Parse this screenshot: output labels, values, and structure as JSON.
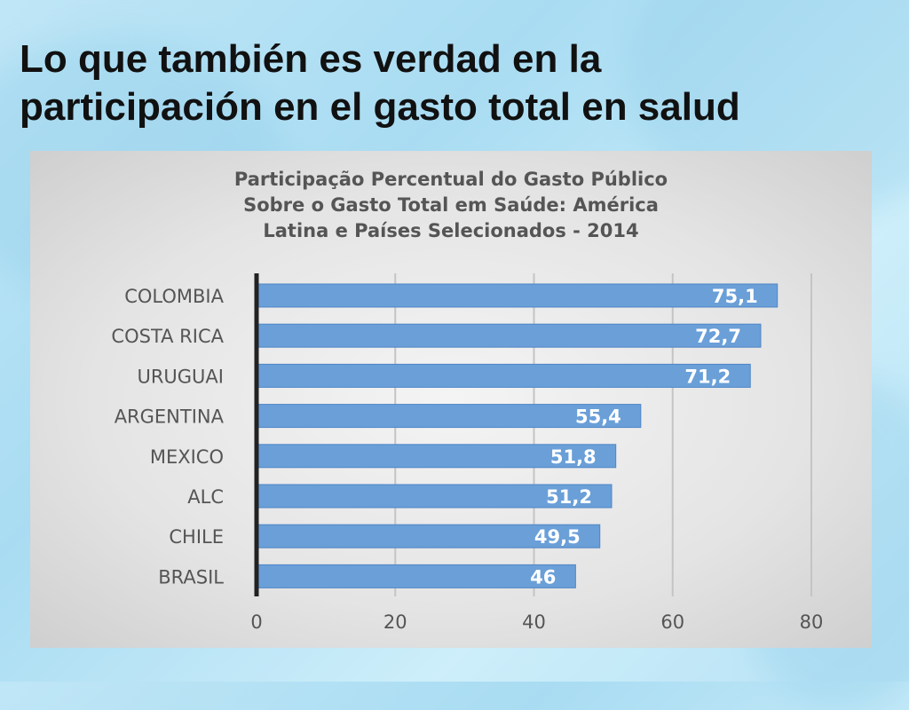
{
  "slide": {
    "title_line1": "Lo que también es verdad en la",
    "title_line2": "participación en el gasto total en salud"
  },
  "chart_data": {
    "type": "bar",
    "orientation": "horizontal",
    "title_lines": [
      "Participação Percentual do Gasto Público",
      "Sobre o Gasto Total em Saúde: América",
      "Latina e Países Selecionados - 2014"
    ],
    "categories": [
      "COLOMBIA",
      "COSTA RICA",
      "URUGUAI",
      "ARGENTINA",
      "MEXICO",
      "ALC",
      "CHILE",
      "BRASIL"
    ],
    "values": [
      75.1,
      72.7,
      71.2,
      55.4,
      51.8,
      51.2,
      49.5,
      46
    ],
    "value_labels": [
      "75,1",
      "72,7",
      "71,2",
      "55,4",
      "51,8",
      "51,2",
      "49,5",
      "46"
    ],
    "xlim": [
      0,
      80
    ],
    "x_ticks": [
      0,
      20,
      40,
      60,
      80
    ],
    "x_tick_labels": [
      "0",
      "20",
      "40",
      "60",
      "80"
    ],
    "grid": true,
    "legend": "none",
    "colors": {
      "bar": "#6a9fd8",
      "bar_edge": "#4f86c6",
      "label": "#ffffff",
      "axis": "#222222",
      "grid": "#c4c4c4",
      "text": "#555555"
    }
  }
}
